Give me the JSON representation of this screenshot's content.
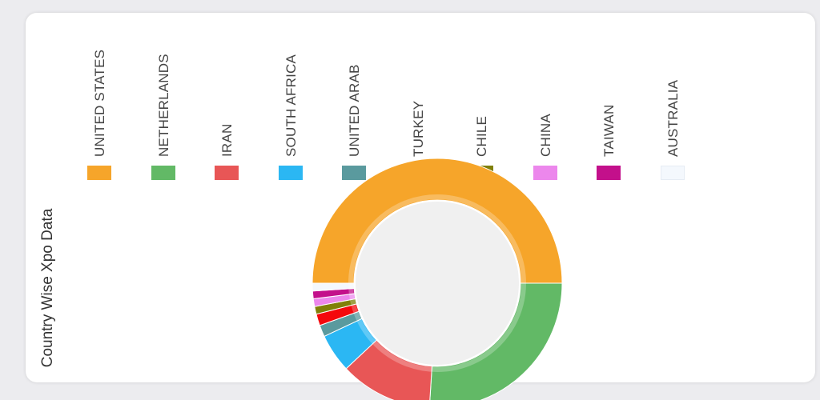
{
  "side_title": "Country Wise Xpo Data",
  "chart_data": {
    "type": "pie",
    "subtype": "donut",
    "title": "Country Wise Xpo Data",
    "legend_position": "top",
    "categories": [
      "UNITED STATES",
      "NETHERLANDS",
      "IRAN",
      "SOUTH AFRICA",
      "UNITED ARAB",
      "TURKEY",
      "CHILE",
      "CHINA",
      "TAIWAN",
      "AUSTRALIA"
    ],
    "values": [
      50,
      26,
      12,
      5,
      1.5,
      1.5,
      1,
      1,
      1,
      1
    ],
    "colors": [
      "#f6a52a",
      "#62b966",
      "#e85656",
      "#2bb7f3",
      "#5a9a9e",
      "#f4080c",
      "#808008",
      "#ec87ec",
      "#c3108b",
      "#f4f8fd"
    ]
  }
}
